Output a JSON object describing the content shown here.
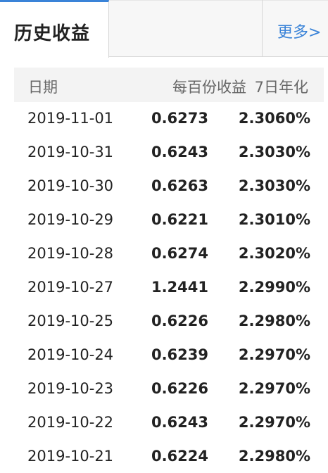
{
  "tabs": {
    "title": "历史收益",
    "more": "更多>"
  },
  "table": {
    "headers": {
      "date": "日期",
      "income": "每百份收益",
      "yield": "7日年化"
    },
    "rows": [
      {
        "date": "2019-11-01",
        "income": "0.6273",
        "yield": "2.3060%"
      },
      {
        "date": "2019-10-31",
        "income": "0.6243",
        "yield": "2.3030%"
      },
      {
        "date": "2019-10-30",
        "income": "0.6263",
        "yield": "2.3030%"
      },
      {
        "date": "2019-10-29",
        "income": "0.6221",
        "yield": "2.3010%"
      },
      {
        "date": "2019-10-28",
        "income": "0.6274",
        "yield": "2.3020%"
      },
      {
        "date": "2019-10-27",
        "income": "1.2441",
        "yield": "2.2990%"
      },
      {
        "date": "2019-10-25",
        "income": "0.6226",
        "yield": "2.2980%"
      },
      {
        "date": "2019-10-24",
        "income": "0.6239",
        "yield": "2.2970%"
      },
      {
        "date": "2019-10-23",
        "income": "0.6226",
        "yield": "2.2970%"
      },
      {
        "date": "2019-10-22",
        "income": "0.6243",
        "yield": "2.2970%"
      },
      {
        "date": "2019-10-21",
        "income": "0.6224",
        "yield": "2.2980%"
      }
    ]
  },
  "colors": {
    "accent": "#3a83d8",
    "header_bg": "#f3f3f3",
    "tabbar_bg": "#f7f7f7"
  }
}
